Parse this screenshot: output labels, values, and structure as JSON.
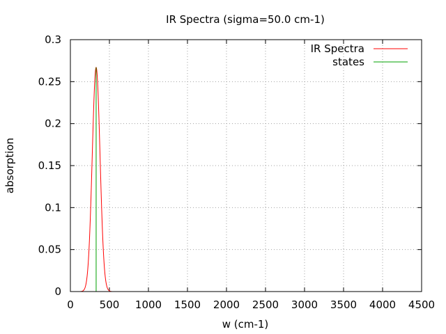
{
  "chart_data": {
    "type": "line",
    "title": "IR Spectra (sigma=50.0 cm-1)",
    "xlabel": "w (cm-1)",
    "ylabel": "absorption",
    "xlim": [
      0,
      4500
    ],
    "ylim": [
      0,
      0.3
    ],
    "xticks": [
      "0",
      "500",
      "1000",
      "1500",
      "2000",
      "2500",
      "3000",
      "3500",
      "4000",
      "4500"
    ],
    "yticks": [
      "0",
      "0.05",
      "0.1",
      "0.15",
      "0.2",
      "0.25",
      "0.3"
    ],
    "grid": true,
    "legend_position": "top-right",
    "series": [
      {
        "name": "IR Spectra",
        "color": "#ff0000",
        "kind": "gaussian",
        "center": 330,
        "peak": 0.267,
        "sigma": 50.0,
        "x_range": [
          130,
          530
        ]
      },
      {
        "name": "states",
        "color": "#00a000",
        "kind": "stick",
        "x": [
          330
        ],
        "y": [
          0.267
        ]
      }
    ]
  }
}
